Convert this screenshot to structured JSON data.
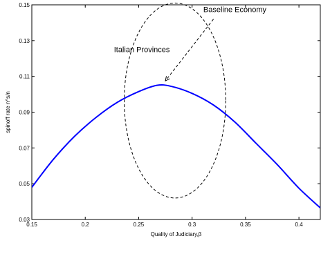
{
  "chart_data": {
    "type": "line",
    "title": "",
    "xlabel": "Quality of Judiciary,β",
    "ylabel": "spinoff rate n^s/n",
    "xlim": [
      0.15,
      0.42
    ],
    "ylim": [
      0.03,
      0.15
    ],
    "grid": false,
    "x_ticks": [
      0.15,
      0.2,
      0.25,
      0.3,
      0.35,
      0.4
    ],
    "x_tick_labels": [
      "0.15",
      "0.2",
      "0.25",
      "0.3",
      "0.35",
      "0.4"
    ],
    "y_ticks": [
      0.03,
      0.05,
      0.07,
      0.09,
      0.11,
      0.13,
      0.15
    ],
    "y_tick_labels": [
      "0.03",
      "0.05",
      "0.07",
      "0.09",
      "0.11",
      "0.13",
      "0.15"
    ],
    "series": [
      {
        "color": "#0000ff",
        "x": [
          0.15,
          0.17,
          0.19,
          0.21,
          0.23,
          0.25,
          0.267,
          0.28,
          0.3,
          0.32,
          0.34,
          0.36,
          0.38,
          0.4,
          0.42
        ],
        "y": [
          0.048,
          0.0635,
          0.0765,
          0.087,
          0.0955,
          0.1015,
          0.105,
          0.1045,
          0.1005,
          0.094,
          0.0845,
          0.0725,
          0.0605,
          0.0475,
          0.0365
        ]
      }
    ],
    "ellipse": {
      "style": "dashed",
      "center": [
        0.284,
        0.0965
      ],
      "x_radius": 0.0475,
      "y_radius": 0.0545
    },
    "annotations": [
      {
        "text": "Baseline Economy",
        "x": 0.34,
        "y": 0.146
      },
      {
        "text": "Italian Provinces",
        "x": 0.253,
        "y": 0.1235
      }
    ],
    "arrow": {
      "from": [
        0.32,
        0.142
      ],
      "to": [
        0.275,
        0.1075
      ]
    }
  }
}
